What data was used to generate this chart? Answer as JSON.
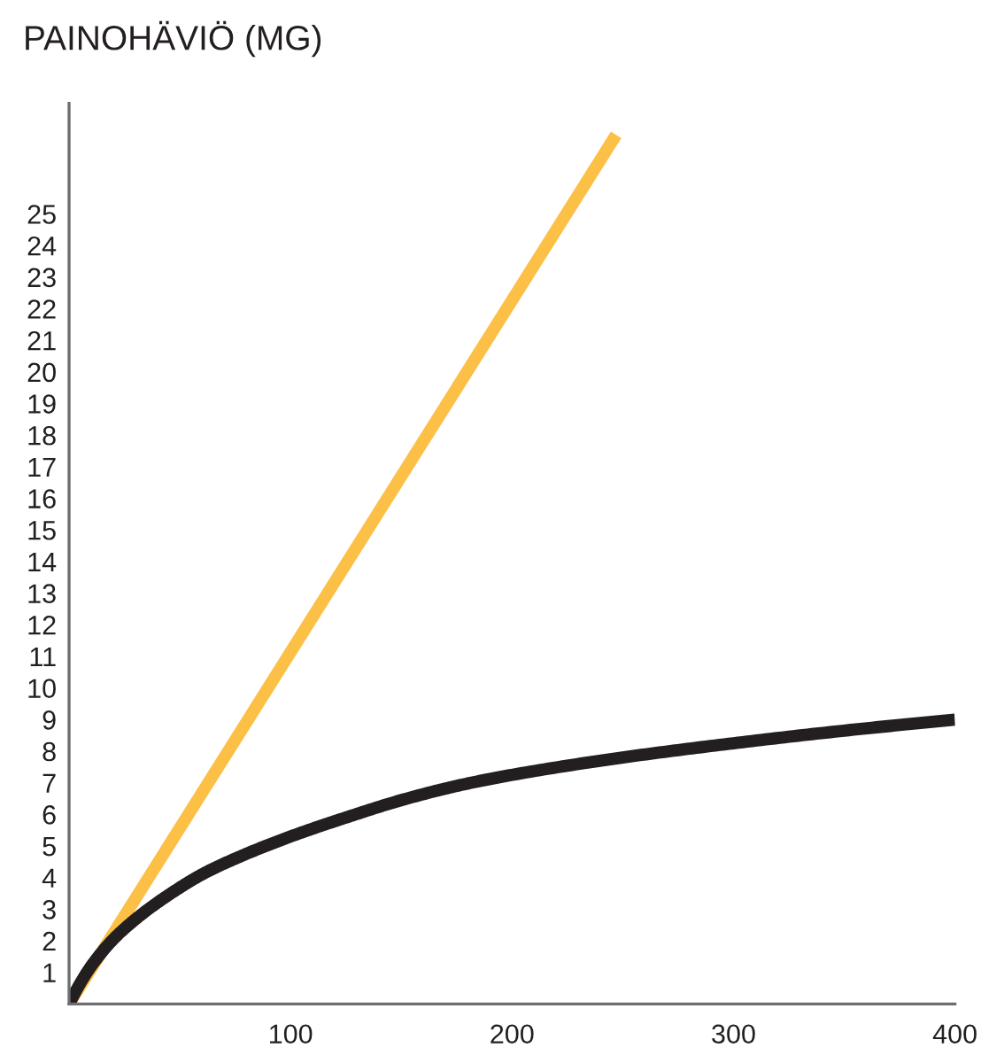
{
  "chart_data": {
    "type": "line",
    "ylabel": "PAINOHÄVIÖ (MG)",
    "xlim": [
      0,
      400
    ],
    "xticks": [
      100,
      200,
      300,
      400
    ],
    "ylim": [
      0,
      28.5
    ],
    "yticks": [
      1,
      2,
      3,
      4,
      5,
      6,
      7,
      8,
      9,
      10,
      11,
      12,
      13,
      14,
      15,
      16,
      17,
      18,
      19,
      20,
      21,
      22,
      23,
      24,
      25
    ],
    "line_style": "solid",
    "series": [
      {
        "color": "#fcc046",
        "x": [
          0,
          247
        ],
        "values": [
          0,
          27.5
        ]
      },
      {
        "color": "#231f20",
        "x": [
          0,
          5,
          10,
          20,
          33,
          46,
          60,
          75,
          100,
          125,
          150,
          175,
          200,
          250,
          300,
          350,
          400
        ],
        "values": [
          0,
          0.65,
          1.2,
          2.05,
          2.85,
          3.5,
          4.1,
          4.6,
          5.3,
          5.9,
          6.45,
          6.9,
          7.25,
          7.8,
          8.25,
          8.65,
          9.0
        ]
      }
    ]
  }
}
